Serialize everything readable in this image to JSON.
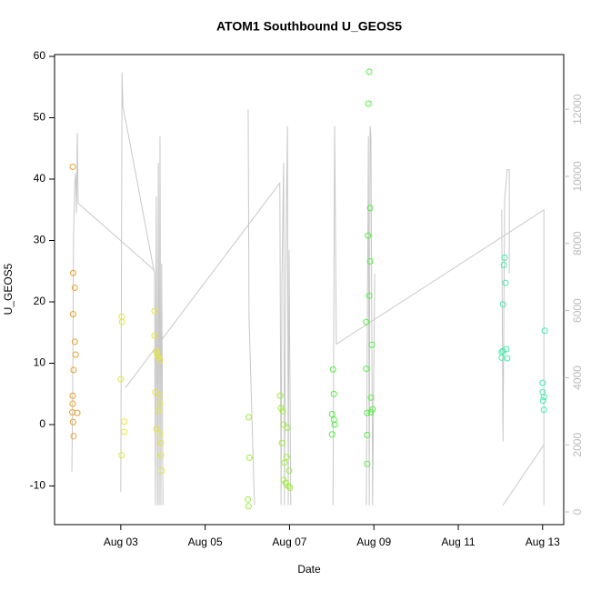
{
  "chart_data": {
    "type": "scatter",
    "title": "ATOM1 Southbound U_GEOS5",
    "x_label": "Date",
    "y_label": "U_GEOS5",
    "xlim": [
      1.43,
      13.5
    ],
    "ylim": [
      -16.3,
      60.3
    ],
    "y2lim": [
      -379,
      13631
    ],
    "xticks": [
      {
        "value": 3,
        "label": "Aug 03"
      },
      {
        "value": 5,
        "label": "Aug 05"
      },
      {
        "value": 7,
        "label": "Aug 07"
      },
      {
        "value": 9,
        "label": "Aug 09"
      },
      {
        "value": 11,
        "label": "Aug 11"
      },
      {
        "value": 13,
        "label": "Aug 13"
      }
    ],
    "yticks": [
      -10,
      0,
      10,
      20,
      30,
      40,
      50,
      60
    ],
    "y2ticks": [
      0,
      2000,
      4000,
      6000,
      8000,
      10000,
      12000
    ],
    "y2color": "#bbbbbb",
    "series": [
      {
        "type": "line",
        "axis": "y2",
        "color": "#c8c8c8",
        "x": [
          1.84,
          1.86,
          1.88,
          1.91,
          1.93,
          1.95,
          1.97,
          1.99,
          3.8,
          null,
          3.0,
          3.03,
          3.05,
          3.8,
          3.82,
          3.84,
          3.87,
          3.89,
          3.91,
          3.93,
          3.95,
          3.97,
          4.0,
          null,
          3.11,
          6.77,
          6.8,
          6.82,
          6.86,
          6.88,
          6.91,
          6.95,
          6.97,
          6.99,
          7.03,
          null,
          6.02,
          6.04,
          6.17,
          null,
          8.03,
          8.07,
          8.11,
          13.03,
          13.03,
          null,
          8.82,
          8.87,
          8.89,
          8.91,
          8.93,
          8.97,
          9.02,
          null,
          12.06,
          13.03,
          null,
          12.03,
          12.06,
          12.1,
          12.16,
          12.21,
          12.21
        ],
        "values": [
          1200,
          3600,
          8200,
          9800,
          10100,
          8900,
          11300,
          9200,
          7200,
          null,
          600,
          13100,
          12100,
          7100,
          200,
          9400,
          200,
          10400,
          200,
          11200,
          200,
          7400,
          200,
          null,
          3700,
          9800,
          200,
          6900,
          10400,
          200,
          7100,
          11500,
          200,
          7800,
          200,
          null,
          12000,
          5800,
          200,
          null,
          200,
          11500,
          5000,
          9000,
          200,
          null,
          200,
          11200,
          200,
          11500,
          11200,
          200,
          7100,
          null,
          200,
          2000,
          null,
          9000,
          2100,
          9300,
          10200,
          10200,
          7100
        ]
      },
      {
        "color": "#e8a030",
        "x": [
          1.86,
          1.87,
          1.91,
          1.87,
          1.91,
          1.93,
          1.88,
          1.86,
          1.86,
          1.85,
          1.97,
          1.87,
          1.88
        ],
        "values": [
          42,
          24.7,
          22.3,
          18,
          13.5,
          11.4,
          8.9,
          4.7,
          3.4,
          2,
          1.9,
          0.4,
          -1.9
        ]
      },
      {
        "color": "#e6e640",
        "x": [
          3.02,
          3.03,
          3.0,
          3.08,
          3.08,
          3.02,
          3.8,
          3.8,
          3.84,
          3.86,
          3.89,
          3.93,
          3.82,
          3.91,
          3.93,
          3.89,
          3.84,
          3.93,
          3.95,
          3.95,
          3.97
        ],
        "values": [
          17.6,
          16.7,
          7.4,
          0.5,
          -1.2,
          -5,
          18.5,
          14.5,
          12,
          11.5,
          11,
          10.5,
          5.3,
          4.8,
          3.4,
          2.2,
          -0.7,
          -1.5,
          -3,
          -5,
          -7.5
        ]
      },
      {
        "color": "#9cee3c",
        "x": [
          6.03,
          6.05,
          6.01,
          6.03,
          6.78,
          6.8,
          6.84,
          6.86,
          6.95,
          6.82,
          6.93,
          6.88,
          6.99,
          6.86,
          6.91,
          6.97,
          7.01
        ],
        "values": [
          1.2,
          -5.4,
          -12.2,
          -13.3,
          4.7,
          2.7,
          2.2,
          0,
          -0.5,
          -3,
          -5.3,
          -6.2,
          -7.5,
          -9,
          -9.5,
          -10,
          -10.3
        ]
      },
      {
        "color": "#55ee44",
        "x": [
          8.03,
          8.05,
          8.01,
          8.05,
          8.07,
          8.01,
          8.89,
          8.87,
          8.91,
          8.86,
          8.91,
          8.89,
          8.82,
          8.95,
          8.82,
          8.93,
          8.97,
          8.93,
          8.84,
          8.84,
          8.84
        ],
        "values": [
          9,
          5,
          1.7,
          0.8,
          0,
          -1.6,
          57.5,
          52.3,
          35.3,
          30.8,
          26.6,
          21,
          16.7,
          13,
          9.1,
          4.4,
          2.5,
          2,
          1.9,
          -1.7,
          -6.4
        ]
      },
      {
        "color": "#44eeaa",
        "x": [
          12.1,
          12.08,
          12.12,
          12.06,
          12.14,
          12.06,
          12.03,
          12.03,
          12.16,
          13.05,
          13.0,
          13.0,
          13.03,
          13.01,
          13.03
        ],
        "values": [
          27.2,
          26,
          23.1,
          19.6,
          12.3,
          12,
          11.8,
          10.9,
          10.8,
          15.3,
          6.8,
          5.3,
          4.5,
          3.9,
          2.4
        ]
      }
    ]
  }
}
